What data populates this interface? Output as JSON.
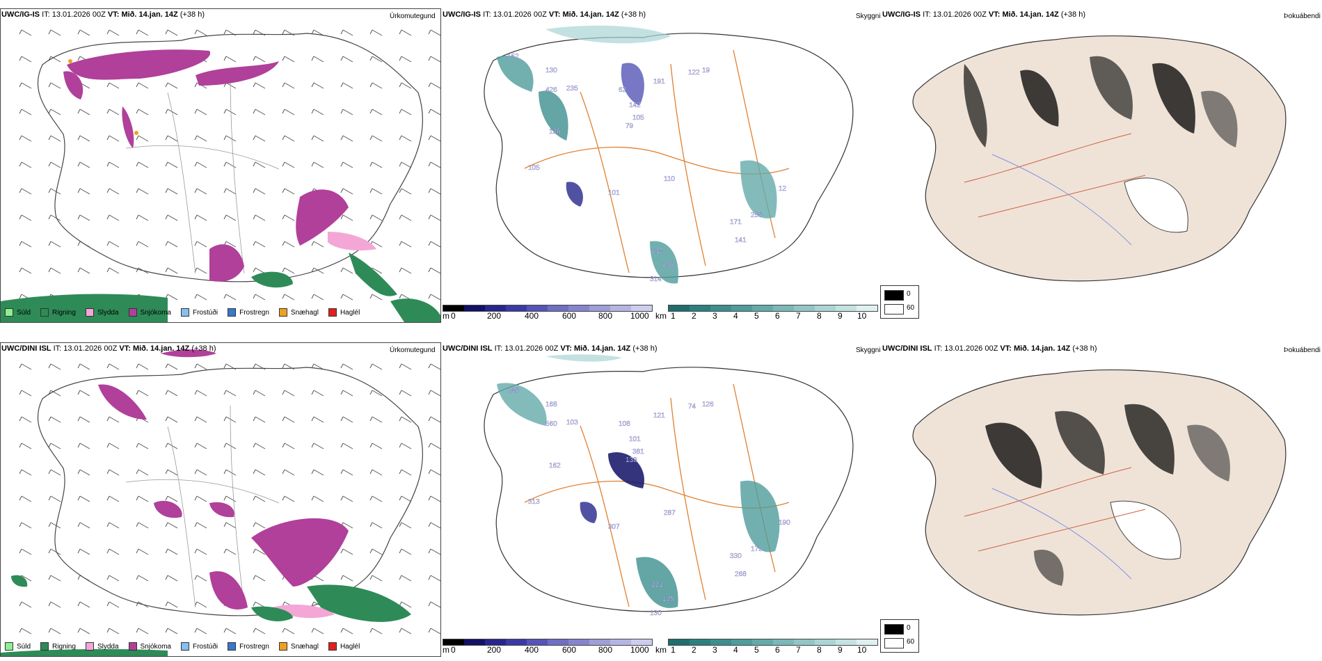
{
  "rows": [
    {
      "id": "top",
      "model": "UWC/IG-IS",
      "it_label": "IT:",
      "it_value": "13.01.2026 00Z",
      "vt_label": "VT:",
      "vt_value": "Mið. 14.jan. 14Z",
      "lead": "(+38 h)",
      "precip_title": "Úrkomutegund",
      "vis_title": "Skyggni",
      "fog_title": "Þokuábendi",
      "vis_labels": [
        {
          "v": "152"
        },
        {
          "v": "130"
        },
        {
          "v": "426"
        },
        {
          "v": "235"
        },
        {
          "v": "62"
        },
        {
          "v": "142"
        },
        {
          "v": "191"
        },
        {
          "v": "122"
        },
        {
          "v": "19"
        },
        {
          "v": "126"
        },
        {
          "v": "79"
        },
        {
          "v": "105"
        },
        {
          "v": "105"
        },
        {
          "v": "101"
        },
        {
          "v": "110"
        },
        {
          "v": "12"
        },
        {
          "v": "171"
        },
        {
          "v": "258"
        },
        {
          "v": "141"
        },
        {
          "v": "134"
        },
        {
          "v": "298"
        },
        {
          "v": "314"
        }
      ]
    },
    {
      "id": "bottom",
      "model": "UWC/DINI ISL",
      "it_label": "IT:",
      "it_value": "13.01.2026 00Z",
      "vt_label": "VT:",
      "vt_value": "Mið. 14.jan. 14Z",
      "lead": "(+38 h)",
      "precip_title": "Úrkomutegund",
      "vis_title": "Skyggni",
      "fog_title": "Þokuábendi",
      "vis_labels": [
        {
          "v": "248"
        },
        {
          "v": "168"
        },
        {
          "v": "560"
        },
        {
          "v": "103"
        },
        {
          "v": "108"
        },
        {
          "v": "101"
        },
        {
          "v": "121"
        },
        {
          "v": "74"
        },
        {
          "v": "126"
        },
        {
          "v": "162"
        },
        {
          "v": "138"
        },
        {
          "v": "381"
        },
        {
          "v": "313"
        },
        {
          "v": "307"
        },
        {
          "v": "287"
        },
        {
          "v": "190"
        },
        {
          "v": "330"
        },
        {
          "v": "173"
        },
        {
          "v": "268"
        },
        {
          "v": "221"
        },
        {
          "v": "145"
        },
        {
          "v": "130"
        }
      ]
    }
  ],
  "precip_legend": [
    {
      "label": "Súld",
      "color": "#90ee90"
    },
    {
      "label": "Rigning",
      "color": "#2e8b57"
    },
    {
      "label": "Slydda",
      "color": "#f4a6d7"
    },
    {
      "label": "Snjókoma",
      "color": "#b0409a"
    },
    {
      "label": "Frostúði",
      "color": "#87bff0"
    },
    {
      "label": "Frostregn",
      "color": "#3a78c8"
    },
    {
      "label": "Snæhagl",
      "color": "#f0a020"
    },
    {
      "label": "Haglél",
      "color": "#e02020"
    }
  ],
  "ceiling_scale": {
    "unit": "m",
    "ticks": [
      "0",
      "200",
      "400",
      "600",
      "800",
      "1000"
    ],
    "colors": [
      "#000000",
      "#111166",
      "#26268c",
      "#3a3aa6",
      "#5555b8",
      "#6f6fc4",
      "#8585cf",
      "#9e9ed9",
      "#b5b5e3",
      "#cdcdef"
    ]
  },
  "vis_scale": {
    "unit": "km",
    "ticks": [
      "1",
      "2",
      "3",
      "4",
      "5",
      "6",
      "7",
      "8",
      "9",
      "10"
    ],
    "colors": [
      "#1f6e6e",
      "#2d8080",
      "#3d8e8e",
      "#4f9c9c",
      "#64aaaa",
      "#7bb8b8",
      "#92c6c6",
      "#abd4d4",
      "#c4e2e2",
      "#dff0f0"
    ]
  },
  "fog_scale": {
    "ticks": [
      "0",
      "60"
    ],
    "colors": [
      "#000000",
      "#ffffff"
    ]
  }
}
